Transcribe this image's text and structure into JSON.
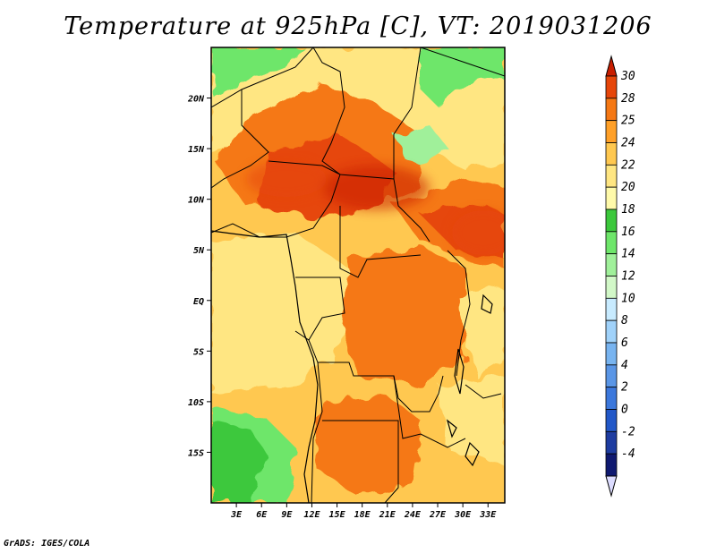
{
  "title": "Temperature at 925hPa [C], VT: 2019031206",
  "footer": "GrADS: IGES/COLA",
  "map": {
    "lon_range": [
      0,
      35
    ],
    "lat_range": [
      -20,
      25
    ],
    "lon_ticks": [
      {
        "value": 3,
        "label": "3E"
      },
      {
        "value": 6,
        "label": "6E"
      },
      {
        "value": 9,
        "label": "9E"
      },
      {
        "value": 12,
        "label": "12E"
      },
      {
        "value": 15,
        "label": "15E"
      },
      {
        "value": 18,
        "label": "18E"
      },
      {
        "value": 21,
        "label": "21E"
      },
      {
        "value": 24,
        "label": "24E"
      },
      {
        "value": 27,
        "label": "27E"
      },
      {
        "value": 30,
        "label": "30E"
      },
      {
        "value": 33,
        "label": "33E"
      }
    ],
    "lat_ticks": [
      {
        "value": 20,
        "label": "20N"
      },
      {
        "value": 15,
        "label": "15N"
      },
      {
        "value": 10,
        "label": "10N"
      },
      {
        "value": 5,
        "label": "5N"
      },
      {
        "value": 0,
        "label": "EQ"
      },
      {
        "value": -5,
        "label": "5S"
      },
      {
        "value": -10,
        "label": "10S"
      },
      {
        "value": -15,
        "label": "15S"
      }
    ]
  },
  "colorbar": {
    "levels": [
      "-4",
      "-2",
      "0",
      "2",
      "4",
      "6",
      "8",
      "10",
      "12",
      "14",
      "16",
      "18",
      "20",
      "22",
      "24",
      "25",
      "28",
      "30"
    ],
    "colors": [
      "#0f1970",
      "#1e3ca0",
      "#2258c8",
      "#3c78dc",
      "#5a96e6",
      "#78b4f0",
      "#a0d2fa",
      "#c8ebff",
      "#d2f8c8",
      "#a0f09a",
      "#6ee66a",
      "#3cc83c",
      "#fffaaa",
      "#ffe682",
      "#ffc850",
      "#ffa028",
      "#f57814",
      "#e6460a",
      "#c81e00"
    ],
    "under_color": "#dcdcff"
  },
  "field": {
    "field_name": "temperature_925hPa",
    "units": "C"
  }
}
